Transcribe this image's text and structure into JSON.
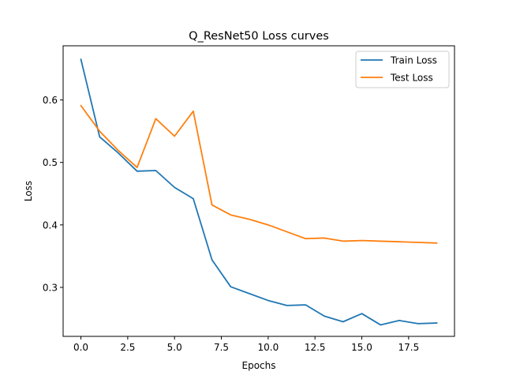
{
  "chart_data": {
    "type": "line",
    "title": "Q_ResNet50 Loss curves",
    "xlabel": "Epochs",
    "ylabel": "Loss",
    "xlim": [
      -0.95,
      19.95
    ],
    "ylim": [
      0.2216,
      0.6867
    ],
    "xticks": [
      0,
      2.5,
      5,
      7.5,
      10,
      12.5,
      15,
      17.5
    ],
    "xtick_labels": [
      "0.0",
      "2.5",
      "5.0",
      "7.5",
      "10.0",
      "12.5",
      "15.0",
      "17.5"
    ],
    "yticks": [
      0.3,
      0.4,
      0.5,
      0.6
    ],
    "ytick_labels": [
      "0.3",
      "0.4",
      "0.5",
      "0.6"
    ],
    "grid": false,
    "legend_position": "top-right",
    "x": [
      0,
      1,
      2,
      3,
      4,
      5,
      6,
      7,
      8,
      9,
      10,
      11,
      12,
      13,
      14,
      15,
      16,
      17,
      18,
      19
    ],
    "series": [
      {
        "name": "Train Loss",
        "color": "#1f77b4",
        "values": [
          0.665,
          0.541,
          0.515,
          0.486,
          0.487,
          0.46,
          0.442,
          0.344,
          0.301,
          0.29,
          0.279,
          0.271,
          0.272,
          0.254,
          0.245,
          0.258,
          0.24,
          0.247,
          0.242,
          0.243
        ]
      },
      {
        "name": "Test Loss",
        "color": "#ff7f0e",
        "values": [
          0.591,
          0.55,
          0.519,
          0.492,
          0.57,
          0.542,
          0.582,
          0.432,
          0.416,
          0.409,
          0.4,
          0.389,
          0.378,
          0.379,
          0.374,
          0.375,
          0.374,
          0.373,
          0.372,
          0.371
        ]
      }
    ]
  }
}
